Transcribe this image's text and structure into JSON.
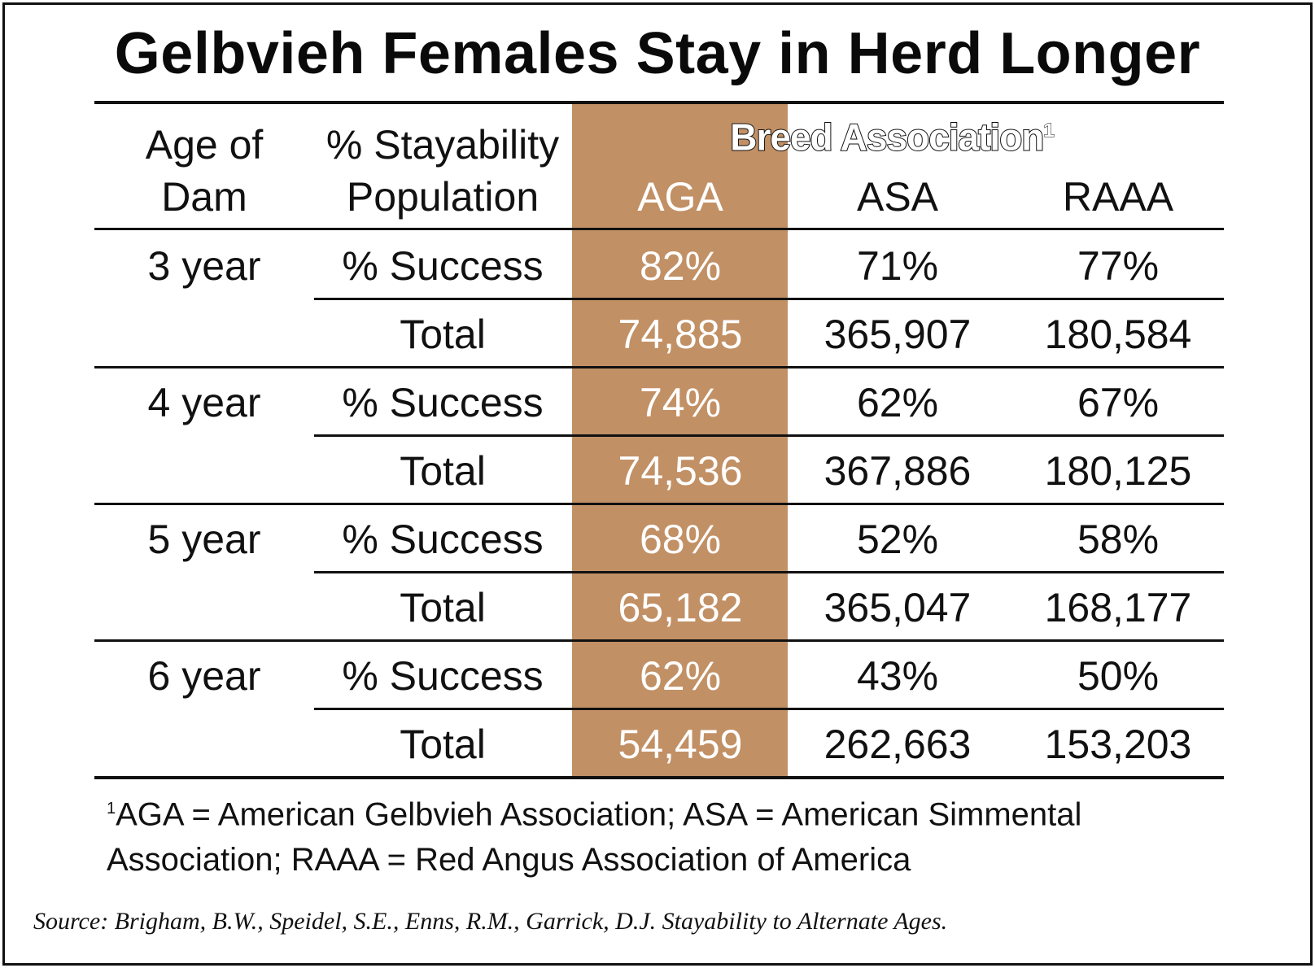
{
  "chart_data": {
    "type": "table",
    "title": "Gelbvieh Females Stay in Herd Longer",
    "group_header": "Breed Association",
    "group_header_footnote_mark": "1",
    "highlight_color": "#c29065",
    "columns": [
      "Age of Dam",
      "% Stayability Population",
      "AGA",
      "ASA",
      "RAAA"
    ],
    "rows": [
      {
        "age": "3 year",
        "success_label": "% Success",
        "total_label": "Total",
        "success": {
          "AGA": "82%",
          "ASA": "71%",
          "RAAA": "77%"
        },
        "total": {
          "AGA": "74,885",
          "ASA": "365,907",
          "RAAA": "180,584"
        }
      },
      {
        "age": "4 year",
        "success_label": "% Success",
        "total_label": "Total",
        "success": {
          "AGA": "74%",
          "ASA": "62%",
          "RAAA": "67%"
        },
        "total": {
          "AGA": "74,536",
          "ASA": "367,886",
          "RAAA": "180,125"
        }
      },
      {
        "age": "5 year",
        "success_label": "% Success",
        "total_label": "Total",
        "success": {
          "AGA": "68%",
          "ASA": "52%",
          "RAAA": "58%"
        },
        "total": {
          "AGA": "65,182",
          "ASA": "365,047",
          "RAAA": "168,177"
        }
      },
      {
        "age": "6 year",
        "success_label": "% Success",
        "total_label": "Total",
        "success": {
          "AGA": "62%",
          "ASA": "43%",
          "RAAA": "50%"
        },
        "total": {
          "AGA": "54,459",
          "ASA": "262,663",
          "RAAA": "153,203"
        }
      }
    ],
    "footnote_mark": "1",
    "footnote_line1": "AGA = American Gelbvieh Association; ASA = American Simmental",
    "footnote_line2": "Association; RAAA = Red Angus Association of America",
    "source": "Source: Brigham, B.W., Speidel, S.E., Enns, R.M., Garrick, D.J. Stayability to Alternate Ages."
  }
}
